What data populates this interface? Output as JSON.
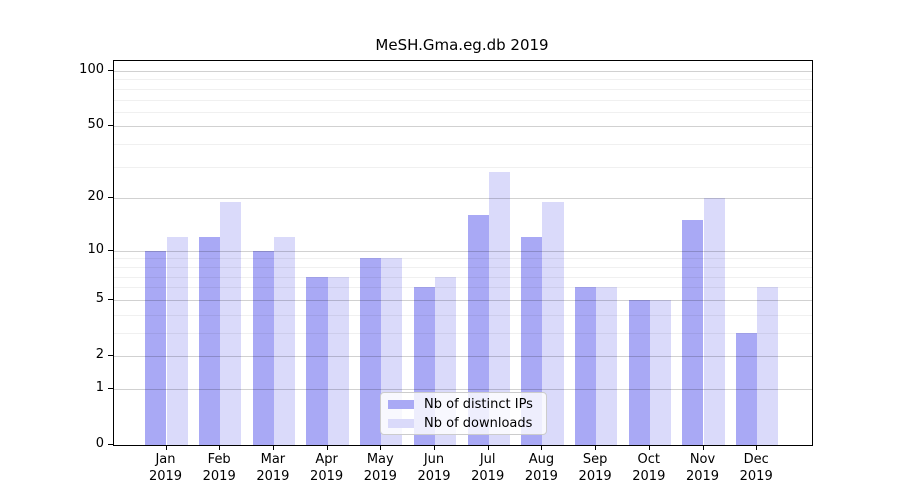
{
  "title": "MeSH.Gma.eg.db 2019",
  "chart_data": {
    "type": "bar",
    "title": "MeSH.Gma.eg.db 2019",
    "categories": [
      "Jan",
      "Feb",
      "Mar",
      "Apr",
      "May",
      "Jun",
      "Jul",
      "Aug",
      "Sep",
      "Oct",
      "Nov",
      "Dec"
    ],
    "category_year": "2019",
    "series": [
      {
        "name": "Nb of distinct IPs",
        "color": "#a9a9f5",
        "values": [
          10,
          12,
          10,
          7,
          9,
          6,
          16,
          12,
          6,
          5,
          15,
          3
        ]
      },
      {
        "name": "Nb of downloads",
        "color": "#dadafa",
        "values": [
          12,
          19,
          12,
          7,
          9,
          7,
          28,
          19,
          6,
          5,
          20,
          6
        ]
      }
    ],
    "y_scale": "log10(value+1)",
    "y_tick_values": [
      0,
      1,
      2,
      5,
      10,
      20,
      50,
      100
    ],
    "y_minor_gridline_values": [
      3,
      4,
      6,
      7,
      8,
      9,
      30,
      40,
      60,
      70,
      80,
      90
    ],
    "ylim": [
      0,
      117
    ],
    "grid": "horizontal",
    "legend_position": "inside-bottom-center",
    "background_color": "#ffffff",
    "axis_color": "#000000"
  }
}
